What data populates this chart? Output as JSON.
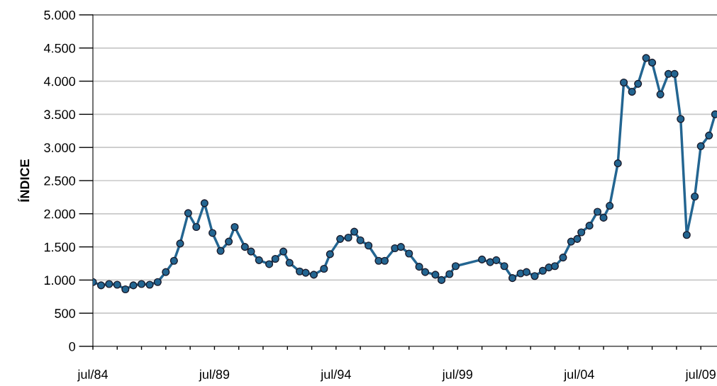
{
  "chart_data": {
    "type": "line",
    "ylabel": "ÍNDICE",
    "marker": "circle",
    "line_style": "solid",
    "grid": "y",
    "x": [
      "1984-07",
      "1984-11",
      "1985-03",
      "1985-07",
      "1985-11",
      "1986-03",
      "1986-07",
      "1986-11",
      "1987-03",
      "1987-07",
      "1987-11",
      "1988-02",
      "1988-06",
      "1988-10",
      "1989-02",
      "1989-06",
      "1989-10",
      "1990-02",
      "1990-05",
      "1990-10",
      "1991-01",
      "1991-05",
      "1991-10",
      "1992-01",
      "1992-05",
      "1992-08",
      "1993-01",
      "1993-04",
      "1993-08",
      "1994-01",
      "1994-04",
      "1994-09",
      "1995-01",
      "1995-04",
      "1995-07",
      "1995-11",
      "1996-04",
      "1996-07",
      "1996-12",
      "1997-03",
      "1997-07",
      "1997-12",
      "1998-03",
      "1998-08",
      "1998-11",
      "1999-03",
      "1999-06",
      "2000-07",
      "2000-11",
      "2001-02",
      "2001-06",
      "2001-10",
      "2002-02",
      "2002-05",
      "2002-09",
      "2003-01",
      "2003-04",
      "2003-07",
      "2003-11",
      "2004-03",
      "2004-06",
      "2004-08",
      "2004-12",
      "2005-04",
      "2005-07",
      "2005-10",
      "2006-02",
      "2006-05",
      "2006-09",
      "2006-12",
      "2007-04",
      "2007-07",
      "2007-11",
      "2008-03",
      "2008-06",
      "2008-09",
      "2008-12",
      "2009-04",
      "2009-07",
      "2009-11",
      "2010-02"
    ],
    "series": [
      {
        "color": "#236591",
        "values": [
          970,
          920,
          940,
          930,
          860,
          920,
          940,
          930,
          970,
          1120,
          1290,
          1550,
          2010,
          1800,
          2160,
          1710,
          1440,
          1580,
          1800,
          1500,
          1430,
          1300,
          1240,
          1320,
          1430,
          1260,
          1130,
          1110,
          1080,
          1170,
          1390,
          1620,
          1640,
          1730,
          1600,
          1520,
          1290,
          1290,
          1480,
          1500,
          1400,
          1200,
          1120,
          1080,
          1000,
          1090,
          1210,
          1310,
          1270,
          1300,
          1210,
          1030,
          1100,
          1120,
          1060,
          1140,
          1190,
          1210,
          1340,
          1580,
          1620,
          1720,
          1820,
          2030,
          1940,
          2120,
          2760,
          3980,
          3840,
          3960,
          4350,
          4280,
          3800,
          4110,
          4110,
          3430,
          1680,
          2260,
          3020,
          3180,
          3500
        ]
      }
    ],
    "xlim": [
      "1984-07",
      "2010-03"
    ],
    "xticks": [
      {
        "value": "1984-07",
        "label": "jul/84"
      },
      {
        "value": "1985-07",
        "label": null
      },
      {
        "value": "1986-07",
        "label": null
      },
      {
        "value": "1987-07",
        "label": null
      },
      {
        "value": "1988-07",
        "label": null
      },
      {
        "value": "1989-07",
        "label": "jul/89"
      },
      {
        "value": "1990-07",
        "label": null
      },
      {
        "value": "1991-07",
        "label": null
      },
      {
        "value": "1992-07",
        "label": null
      },
      {
        "value": "1993-07",
        "label": null
      },
      {
        "value": "1994-07",
        "label": "jul/94"
      },
      {
        "value": "1995-07",
        "label": null
      },
      {
        "value": "1996-07",
        "label": null
      },
      {
        "value": "1997-07",
        "label": null
      },
      {
        "value": "1998-07",
        "label": null
      },
      {
        "value": "1999-07",
        "label": "jul/99"
      },
      {
        "value": "2000-07",
        "label": null
      },
      {
        "value": "2001-07",
        "label": null
      },
      {
        "value": "2002-07",
        "label": null
      },
      {
        "value": "2003-07",
        "label": null
      },
      {
        "value": "2004-07",
        "label": "jul/04"
      },
      {
        "value": "2005-07",
        "label": null
      },
      {
        "value": "2006-07",
        "label": null
      },
      {
        "value": "2007-07",
        "label": null
      },
      {
        "value": "2008-07",
        "label": null
      },
      {
        "value": "2009-07",
        "label": "jul/09"
      }
    ],
    "ylim": [
      0,
      5000
    ],
    "yticks": [
      0,
      500,
      {
        "value": 1000,
        "label": "1.000"
      },
      {
        "value": 1500,
        "label": "1.500"
      },
      {
        "value": 2000,
        "label": "2.000"
      },
      {
        "value": 2500,
        "label": "2.500"
      },
      {
        "value": 3000,
        "label": "3.000"
      },
      {
        "value": 3500,
        "label": "3.500"
      },
      {
        "value": 4000,
        "label": "4.000"
      },
      {
        "value": 4500,
        "label": "4.500"
      },
      {
        "value": 5000,
        "label": "5.000"
      }
    ]
  }
}
